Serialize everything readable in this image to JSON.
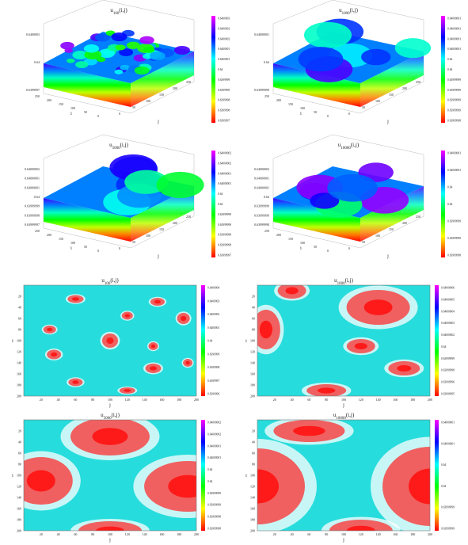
{
  "panels": [
    {
      "id": "p1",
      "type": "surface",
      "title": {
        "main": "u",
        "sub": "100",
        "arg": "(i,j)"
      },
      "z_ticks": [
        "0.6400003",
        "0.64",
        "0.6399997"
      ],
      "i_label": "i",
      "j_label": "j",
      "i_ticks": [
        "250",
        "200",
        "150",
        "100",
        "50",
        "0"
      ],
      "j_ticks": [
        "0",
        "50",
        "100",
        "150",
        "200",
        "250"
      ],
      "colorbar": [
        "0.6400003",
        "0.6400002",
        "0.6400002",
        "0.6400001",
        "0.6400001",
        "0.64",
        "0.6399999",
        "0.6399999",
        "0.6399998",
        "0.6399998",
        "0.6399997"
      ]
    },
    {
      "id": "p2",
      "type": "surface",
      "title": {
        "main": "u",
        "sub": "1000",
        "arg": "(i,j)"
      },
      "z_ticks": [
        "0.64000001",
        "0.64",
        "0.63999999"
      ],
      "i_label": "i",
      "j_label": "j",
      "i_ticks": [
        "250",
        "200",
        "150",
        "100",
        "50",
        "0"
      ],
      "j_ticks": [
        "0",
        "50",
        "100",
        "150",
        "200",
        "250"
      ],
      "colorbar": [
        "0.64000001",
        "0.64000001",
        "0.64000001",
        "0.64000001",
        "0.64",
        "0.64",
        "0.63999999",
        "0.63999999",
        "0.63999999",
        "0.63999999",
        "0.63999998"
      ]
    },
    {
      "id": "p3",
      "type": "surface",
      "title": {
        "main": "u",
        "sub": "5000",
        "arg": "(i,j)"
      },
      "z_ticks": [
        "0.64000002",
        "0.64000001",
        "0.64000001",
        "0.64",
        "0.63999999",
        "0.63999998",
        "0.63999997"
      ],
      "i_label": "i",
      "j_label": "j",
      "i_ticks": [
        "250",
        "200",
        "150",
        "100",
        "50",
        "0"
      ],
      "j_ticks": [
        "0",
        "50",
        "100",
        "150",
        "200",
        "250"
      ],
      "colorbar": [
        "0.64000002",
        "0.64000002",
        "0.64000001",
        "0.64000001",
        "0.64",
        "0.64",
        "0.63999999",
        "0.63999999",
        "0.63999998",
        "0.63999998",
        "0.63999997"
      ]
    },
    {
      "id": "p4",
      "type": "surface",
      "title": {
        "main": "u",
        "sub": "10000",
        "arg": "(i,j)"
      },
      "z_ticks": [
        "0.64000002",
        "0.64000001",
        "0.64000001",
        "0.64",
        "0.63999999",
        "0.63999999",
        "0.63999998"
      ],
      "i_label": "i",
      "j_label": "j",
      "i_ticks": [
        "250",
        "200",
        "150",
        "100",
        "50",
        "0"
      ],
      "j_ticks": [
        "0",
        "50",
        "100",
        "150",
        "200",
        "250"
      ],
      "colorbar": [
        "0.64000001",
        "0.64000001",
        "0.64",
        "0.64",
        "0.63999999",
        "0.63999999",
        "0.63999998"
      ]
    },
    {
      "id": "p5",
      "type": "heatmap",
      "title": {
        "main": "u",
        "sub": "100",
        "arg": "(i,j)"
      },
      "ylabel": "i",
      "xlabel": "j",
      "y_ticks": [
        "20",
        "40",
        "60",
        "80",
        "100",
        "120",
        "140",
        "160",
        "180",
        "200"
      ],
      "x_ticks": [
        "20",
        "40",
        "60",
        "80",
        "100",
        "120",
        "140",
        "160",
        "180",
        "200"
      ],
      "colorbar": [
        "0.6400004",
        "0.6400003",
        "0.6400002",
        "0.6400001",
        "0.64",
        "0.6399999",
        "0.6399998",
        "0.6399997",
        "0.6399996"
      ]
    },
    {
      "id": "p6",
      "type": "heatmap",
      "title": {
        "main": "u",
        "sub": "1000",
        "arg": "(i,j)"
      },
      "ylabel": "i",
      "xlabel": "j",
      "y_ticks": [
        "20",
        "40",
        "60",
        "80",
        "100",
        "120",
        "140",
        "160",
        "180",
        "200"
      ],
      "x_ticks": [
        "20",
        "40",
        "60",
        "80",
        "100",
        "120",
        "140",
        "160",
        "180",
        "200"
      ],
      "colorbar": [
        "0.64000006",
        "0.64000005",
        "0.64000004",
        "0.64000003",
        "0.64000002",
        "0.64",
        "0.63999999",
        "0.63999998",
        "0.63999996",
        "0.63999995"
      ]
    },
    {
      "id": "p7",
      "type": "heatmap",
      "title": {
        "main": "u",
        "sub": "5000",
        "arg": "(i,j)"
      },
      "ylabel": "i",
      "xlabel": "j",
      "y_ticks": [
        "20",
        "40",
        "60",
        "80",
        "100",
        "120",
        "140",
        "160",
        "180",
        "200"
      ],
      "x_ticks": [
        "20",
        "40",
        "60",
        "80",
        "100",
        "120",
        "140",
        "160",
        "180",
        "200"
      ],
      "colorbar": [
        "0.64000002",
        "0.64000002",
        "0.64000001",
        "0.64000001",
        "0.64",
        "0.64",
        "0.63999999",
        "0.63999999",
        "0.63999998",
        "0.63999998"
      ]
    },
    {
      "id": "p8",
      "type": "heatmap",
      "title": {
        "main": "u",
        "sub": "10000",
        "arg": "(i,j)"
      },
      "ylabel": "i",
      "xlabel": "j",
      "y_ticks": [
        "20",
        "40",
        "60",
        "80",
        "100",
        "120",
        "140",
        "160",
        "180",
        "200"
      ],
      "x_ticks": [
        "20",
        "40",
        "60",
        "80",
        "100",
        "120",
        "140",
        "160",
        "180",
        "200"
      ],
      "colorbar": [
        "0.64000001",
        "0.64000001",
        "0.64",
        "0.64",
        "0.63999999",
        "0.63999999"
      ]
    }
  ],
  "chart_data": [
    {
      "type": "surface",
      "title": "u_100(i,j)",
      "xlabel": "j",
      "ylabel": "i",
      "xlim": [
        0,
        250
      ],
      "ylim": [
        0,
        250
      ],
      "zlim": [
        0.6399997,
        0.6400003
      ],
      "colormap": "hsv rainbow",
      "peaks": [
        {
          "i": 100,
          "j": 100,
          "z": 0.6400003
        }
      ]
    },
    {
      "type": "surface",
      "title": "u_1000(i,j)",
      "xlabel": "j",
      "ylabel": "i",
      "xlim": [
        0,
        250
      ],
      "ylim": [
        0,
        250
      ],
      "zlim": [
        0.63999998,
        0.64000001
      ],
      "colormap": "hsv rainbow"
    },
    {
      "type": "surface",
      "title": "u_5000(i,j)",
      "xlabel": "j",
      "ylabel": "i",
      "xlim": [
        0,
        250
      ],
      "ylim": [
        0,
        250
      ],
      "zlim": [
        0.63999997,
        0.64000002
      ],
      "colormap": "hsv rainbow"
    },
    {
      "type": "surface",
      "title": "u_10000(i,j)",
      "xlabel": "j",
      "ylabel": "i",
      "xlim": [
        0,
        250
      ],
      "ylim": [
        0,
        250
      ],
      "zlim": [
        0.63999998,
        0.64000002
      ],
      "colormap": "hsv rainbow"
    },
    {
      "type": "heatmap",
      "title": "u_100(i,j)",
      "xlabel": "j",
      "ylabel": "i",
      "xlim": [
        0,
        200
      ],
      "ylim": [
        0,
        200
      ],
      "colormap": "cyan-red",
      "hot_spots": [
        {
          "i": 100,
          "j": 100
        },
        {
          "i": 60,
          "j": 185
        },
        {
          "i": 120,
          "j": 40
        }
      ]
    },
    {
      "type": "heatmap",
      "title": "u_1000(i,j)",
      "xlabel": "j",
      "ylabel": "i",
      "xlim": [
        0,
        200
      ],
      "ylim": [
        0,
        200
      ],
      "colormap": "cyan-red",
      "hot_spots": [
        {
          "i": 40,
          "j": 140
        },
        {
          "i": 110,
          "j": 120
        },
        {
          "i": 150,
          "j": 170
        }
      ]
    },
    {
      "type": "heatmap",
      "title": "u_5000(i,j)",
      "xlabel": "j",
      "ylabel": "i",
      "xlim": [
        0,
        200
      ],
      "ylim": [
        0,
        200
      ],
      "colormap": "cyan-red",
      "hot_spots": [
        {
          "i": 30,
          "j": 100
        },
        {
          "i": 110,
          "j": 20
        },
        {
          "i": 120,
          "j": 190
        }
      ]
    },
    {
      "type": "heatmap",
      "title": "u_10000(i,j)",
      "xlabel": "j",
      "ylabel": "i",
      "xlim": [
        0,
        200
      ],
      "ylim": [
        0,
        200
      ],
      "colormap": "cyan-red",
      "hot_spots": [
        {
          "i": 120,
          "j": 0
        },
        {
          "i": 120,
          "j": 200
        },
        {
          "i": 30,
          "j": 60
        }
      ]
    }
  ]
}
